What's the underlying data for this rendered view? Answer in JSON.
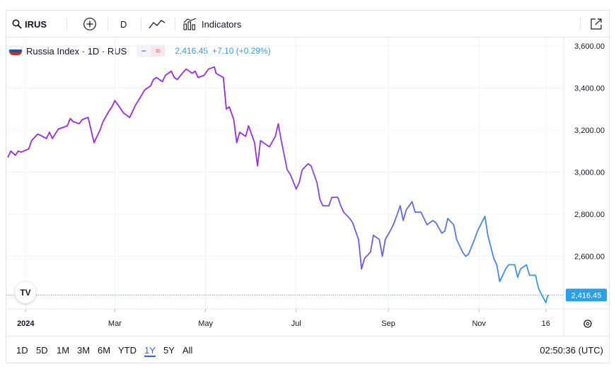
{
  "toolbar": {
    "symbol": "IRUS",
    "interval": "D",
    "indicators_label": "Indicators",
    "icons": [
      "search-icon",
      "add-compare-icon",
      "line-chart-icon",
      "indicators-icon",
      "fullscreen-icon"
    ]
  },
  "legend": {
    "title": "Russia Index · 1D · RUS",
    "price": "2,416.45",
    "change": "+7.10 (+0.29%)",
    "flag_colors": [
      "#ffffff",
      "#1c57a5",
      "#d52b1e"
    ]
  },
  "bottom": {
    "ranges": [
      "1D",
      "5D",
      "1M",
      "3M",
      "6M",
      "YTD",
      "1Y",
      "5Y",
      "All"
    ],
    "active_range": "1Y",
    "time": "02:50:36 (UTC)"
  },
  "logo_text": "TV",
  "colors": {
    "line_start": "#9c27f0",
    "line_end": "#29a3e8",
    "price_label_bg": "#2aa0e6",
    "grid": "#f0f3fa",
    "axis_text": "#131722"
  },
  "chart_data": {
    "type": "line",
    "series": [
      {
        "x": [
          "2023-12-20",
          "2023-12-22",
          "2023-12-25",
          "2023-12-27",
          "2023-12-29",
          "2024-01-03",
          "2024-01-05",
          "2024-01-09",
          "2024-01-11",
          "2024-01-15",
          "2024-01-17",
          "2024-01-19",
          "2024-01-23",
          "2024-01-25",
          "2024-01-29",
          "2024-01-31",
          "2024-02-02",
          "2024-02-06",
          "2024-02-08",
          "2024-02-12",
          "2024-02-14",
          "2024-02-16",
          "2024-02-20",
          "2024-02-22",
          "2024-02-26",
          "2024-02-28",
          "2024-03-01",
          "2024-03-05",
          "2024-03-07",
          "2024-03-11",
          "2024-03-13",
          "2024-03-15",
          "2024-03-19",
          "2024-03-21",
          "2024-03-25",
          "2024-03-27",
          "2024-03-29",
          "2024-04-02",
          "2024-04-04",
          "2024-04-08",
          "2024-04-10",
          "2024-04-12",
          "2024-04-16",
          "2024-04-18",
          "2024-04-22",
          "2024-04-24",
          "2024-04-26",
          "2024-04-30",
          "2024-05-03",
          "2024-05-07",
          "2024-05-08",
          "2024-05-13",
          "2024-05-15",
          "2024-05-17",
          "2024-05-20",
          "2024-05-22",
          "2024-05-24",
          "2024-05-28",
          "2024-05-30",
          "2024-06-03",
          "2024-06-05",
          "2024-06-07",
          "2024-06-11",
          "2024-06-13",
          "2024-06-17",
          "2024-06-19",
          "2024-06-21",
          "2024-06-25",
          "2024-06-27",
          "2024-07-01",
          "2024-07-03",
          "2024-07-05",
          "2024-07-09",
          "2024-07-11",
          "2024-07-15",
          "2024-07-17",
          "2024-07-19",
          "2024-07-23",
          "2024-07-25",
          "2024-07-29",
          "2024-07-31",
          "2024-08-02",
          "2024-08-06",
          "2024-08-08",
          "2024-08-12",
          "2024-08-14",
          "2024-08-16",
          "2024-08-20",
          "2024-08-22",
          "2024-08-26",
          "2024-08-28",
          "2024-08-30",
          "2024-09-03",
          "2024-09-05",
          "2024-09-09",
          "2024-09-11",
          "2024-09-13",
          "2024-09-17",
          "2024-09-19",
          "2024-09-23",
          "2024-09-25",
          "2024-09-27",
          "2024-10-01",
          "2024-10-03",
          "2024-10-07",
          "2024-10-09",
          "2024-10-11",
          "2024-10-15",
          "2024-10-17",
          "2024-10-21",
          "2024-10-23",
          "2024-10-25",
          "2024-10-29",
          "2024-10-31",
          "2024-11-05",
          "2024-11-07",
          "2024-11-11",
          "2024-11-13",
          "2024-11-15",
          "2024-11-19",
          "2024-11-21",
          "2024-11-25",
          "2024-11-27",
          "2024-11-29",
          "2024-12-03",
          "2024-12-05",
          "2024-12-09",
          "2024-12-11",
          "2024-12-13",
          "2024-12-16",
          "2024-12-17",
          "2024-12-18"
        ],
        "values": [
          3070,
          3100,
          3080,
          3100,
          3095,
          3110,
          3150,
          3180,
          3175,
          3160,
          3190,
          3160,
          3205,
          3210,
          3220,
          3255,
          3240,
          3230,
          3250,
          3260,
          3200,
          3140,
          3200,
          3240,
          3290,
          3310,
          3340,
          3300,
          3280,
          3260,
          3290,
          3320,
          3365,
          3390,
          3410,
          3440,
          3450,
          3430,
          3460,
          3480,
          3450,
          3440,
          3475,
          3490,
          3470,
          3480,
          3450,
          3460,
          3490,
          3500,
          3470,
          3450,
          3300,
          3310,
          3250,
          3140,
          3190,
          3170,
          3220,
          3140,
          3030,
          3150,
          3130,
          3120,
          3170,
          3230,
          3150,
          3010,
          2990,
          2920,
          2950,
          3010,
          3040,
          3030,
          2950,
          2870,
          2840,
          2840,
          2880,
          2880,
          2840,
          2810,
          2780,
          2760,
          2680,
          2540,
          2590,
          2620,
          2700,
          2680,
          2600,
          2680,
          2730,
          2760,
          2840,
          2770,
          2820,
          2860,
          2810,
          2810,
          2780,
          2750,
          2770,
          2760,
          2710,
          2720,
          2780,
          2750,
          2680,
          2620,
          2600,
          2610,
          2680,
          2720,
          2790,
          2700,
          2590,
          2560,
          2480,
          2540,
          2560,
          2560,
          2500,
          2540,
          2560,
          2510,
          2510,
          2450,
          2420,
          2380,
          2408,
          2416
        ]
      }
    ],
    "x_ticks": [
      "2024",
      "Mar",
      "May",
      "Jul",
      "Sep",
      "Nov",
      "16"
    ],
    "y_ticks": [
      "3,600.00",
      "3,400.00",
      "3,200.00",
      "3,000.00",
      "2,800.00",
      "2,600.00"
    ],
    "ylim": [
      2350,
      3640
    ],
    "last_price_label": "2,416.45",
    "grid": true
  }
}
